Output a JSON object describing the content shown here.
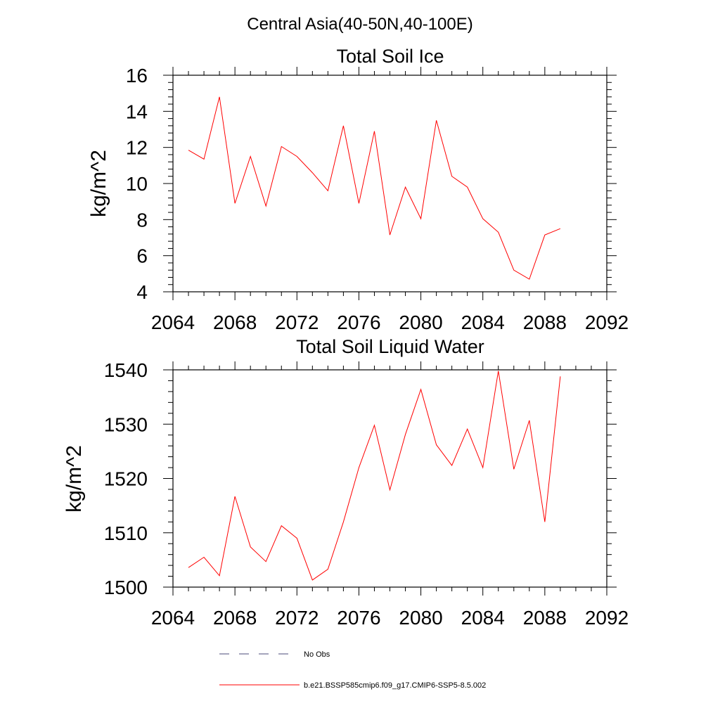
{
  "suptitle": "Central Asia(40-50N,40-100E)",
  "chart_data": [
    {
      "type": "line",
      "title": "Total Soil Ice",
      "xlabel": "",
      "ylabel": "kg/m^2",
      "xlim": [
        2064,
        2092
      ],
      "ylim": [
        4,
        16
      ],
      "xticks": [
        2064,
        2068,
        2072,
        2076,
        2080,
        2084,
        2088,
        2092
      ],
      "yticks": [
        4,
        6,
        8,
        10,
        12,
        14,
        16
      ],
      "grid": false,
      "x": [
        2065,
        2066,
        2067,
        2068,
        2069,
        2070,
        2071,
        2072,
        2073,
        2074,
        2075,
        2076,
        2077,
        2078,
        2079,
        2080,
        2081,
        2082,
        2083,
        2084,
        2085,
        2086,
        2087,
        2088,
        2089
      ],
      "series": [
        {
          "name": "b.e21.BSSP585cmip6.f09_g17.CMIP6-SSP5-8.5.002",
          "color": "#ff0000",
          "values": [
            11.85,
            11.35,
            14.8,
            8.9,
            11.5,
            8.75,
            12.05,
            11.5,
            10.6,
            9.6,
            13.2,
            8.9,
            12.9,
            7.15,
            9.8,
            8.05,
            13.5,
            10.4,
            9.8,
            8.05,
            7.3,
            5.2,
            4.7,
            7.15,
            7.5
          ]
        }
      ]
    },
    {
      "type": "line",
      "title": "Total Soil Liquid Water",
      "xlabel": "",
      "ylabel": "kg/m^2",
      "xlim": [
        2064,
        2092
      ],
      "ylim": [
        1500,
        1540
      ],
      "xticks": [
        2064,
        2068,
        2072,
        2076,
        2080,
        2084,
        2088,
        2092
      ],
      "yticks": [
        1500,
        1510,
        1520,
        1530,
        1540
      ],
      "grid": false,
      "x": [
        2065,
        2066,
        2067,
        2068,
        2069,
        2070,
        2071,
        2072,
        2073,
        2074,
        2075,
        2076,
        2077,
        2078,
        2079,
        2080,
        2081,
        2082,
        2083,
        2084,
        2085,
        2086,
        2087,
        2088,
        2089
      ],
      "series": [
        {
          "name": "b.e21.BSSP585cmip6.f09_g17.CMIP6-SSP5-8.5.002",
          "color": "#ff0000",
          "values": [
            1503.6,
            1505.5,
            1502.1,
            1516.7,
            1507.4,
            1504.7,
            1511.3,
            1509.0,
            1501.3,
            1503.3,
            1512.0,
            1522.0,
            1529.8,
            1517.9,
            1528.1,
            1536.4,
            1526.2,
            1522.4,
            1529.1,
            1522.0,
            1539.8,
            1521.7,
            1530.7,
            1512.0,
            1538.8
          ]
        }
      ]
    }
  ],
  "legend": [
    {
      "label": "No Obs",
      "color": "#4a4a7a",
      "style": "dashed"
    },
    {
      "label": "b.e21.BSSP585cmip6.f09_g17.CMIP6-SSP5-8.5.002",
      "color": "#ff0000",
      "style": "solid"
    }
  ]
}
